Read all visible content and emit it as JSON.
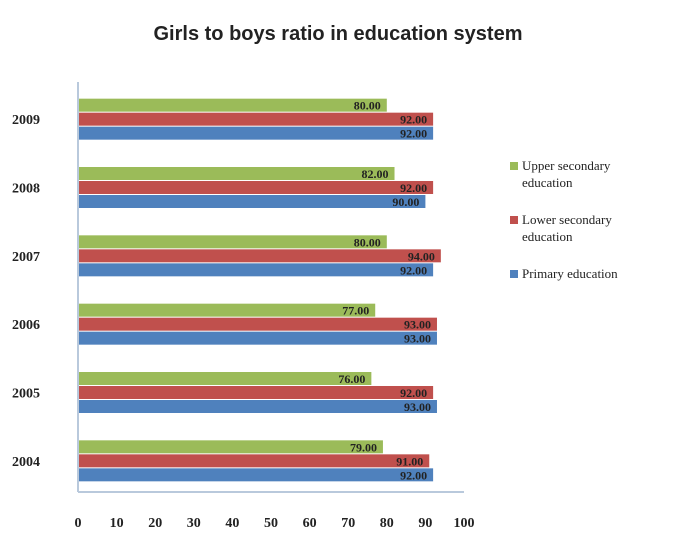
{
  "chart_data": {
    "type": "bar",
    "orientation": "horizontal",
    "title": "Girls to boys ratio in education system",
    "xlabel": "",
    "ylabel": "",
    "xlim": [
      0,
      100
    ],
    "xticks": [
      "0",
      "10",
      "20",
      "30",
      "40",
      "50",
      "60",
      "70",
      "80",
      "90",
      "100"
    ],
    "categories": [
      "2009",
      "2008",
      "2007",
      "2006",
      "2005",
      "2004"
    ],
    "series": [
      {
        "name": "Upper secondary education",
        "color": "#9bbb59",
        "values": [
          80,
          82,
          80,
          77,
          76,
          79
        ],
        "labels": [
          "80.00",
          "82.00",
          "80.00",
          "77.00",
          "76.00",
          "79.00"
        ]
      },
      {
        "name": "Lower secondary education",
        "color": "#c0504d",
        "values": [
          92,
          92,
          94,
          93,
          92,
          91
        ],
        "labels": [
          "92.00",
          "92.00",
          "94.00",
          "93.00",
          "92.00",
          "91.00"
        ]
      },
      {
        "name": "Primary education",
        "color": "#4f81bd",
        "values": [
          92,
          90,
          92,
          93,
          93,
          92
        ],
        "labels": [
          "92.00",
          "90.00",
          "92.00",
          "93.00",
          "93.00",
          "92.00"
        ]
      }
    ],
    "legend_position": "right",
    "grid": false
  }
}
